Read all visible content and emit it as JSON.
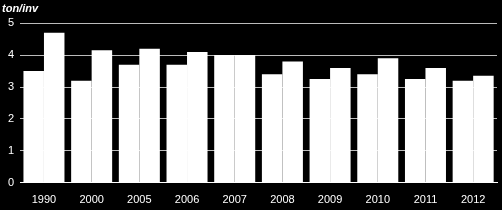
{
  "chart_data": {
    "type": "bar",
    "ylabel": "ton/inv",
    "categories": [
      "1990",
      "2000",
      "2005",
      "2006",
      "2007",
      "2008",
      "2009",
      "2010",
      "2011",
      "2012"
    ],
    "series": [
      {
        "color": "#ffffff",
        "values": [
          3.5,
          3.2,
          3.7,
          3.7,
          4.0,
          3.4,
          3.25,
          3.4,
          3.25,
          3.2
        ]
      },
      {
        "color": "#ffffff",
        "values": [
          4.7,
          4.15,
          4.2,
          4.1,
          4.0,
          3.8,
          3.6,
          3.9,
          3.6,
          3.35
        ]
      }
    ],
    "ylim": [
      0,
      5
    ],
    "yticks": [
      0,
      1,
      2,
      3,
      4,
      5
    ],
    "grid": true
  }
}
